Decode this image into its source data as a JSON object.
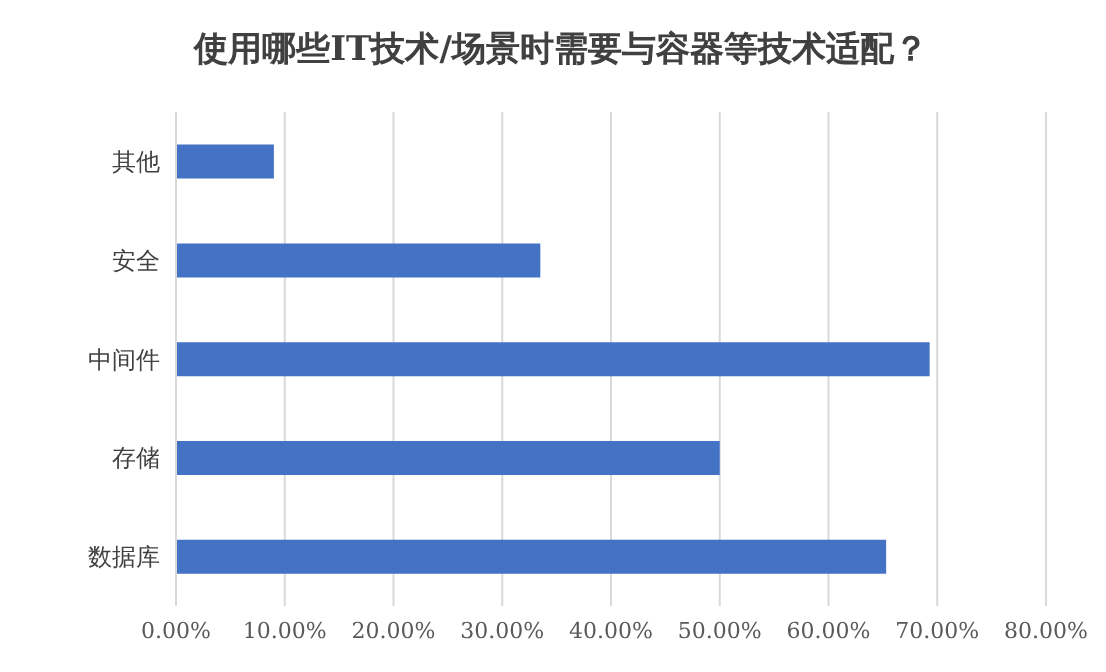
{
  "chart_data": {
    "type": "bar",
    "orientation": "horizontal",
    "title": "使用哪些IT技术/场景时需要与容器等技术适配？",
    "categories": [
      "其他",
      "安全",
      "中间件",
      "存储",
      "数据库"
    ],
    "values": [
      9.0,
      33.5,
      69.3,
      50.0,
      65.3
    ],
    "color": "#4472c4",
    "xlim": [
      0,
      80
    ],
    "xticks": [
      {
        "value": 0,
        "label": "0.00%"
      },
      {
        "value": 10,
        "label": "10.00%"
      },
      {
        "value": 20,
        "label": "20.00%"
      },
      {
        "value": 30,
        "label": "30.00%"
      },
      {
        "value": 40,
        "label": "40.00%"
      },
      {
        "value": 50,
        "label": "50.00%"
      },
      {
        "value": 60,
        "label": "60.00%"
      },
      {
        "value": 70,
        "label": "70.00%"
      },
      {
        "value": 80,
        "label": "80.00%"
      }
    ],
    "grid": "x"
  }
}
